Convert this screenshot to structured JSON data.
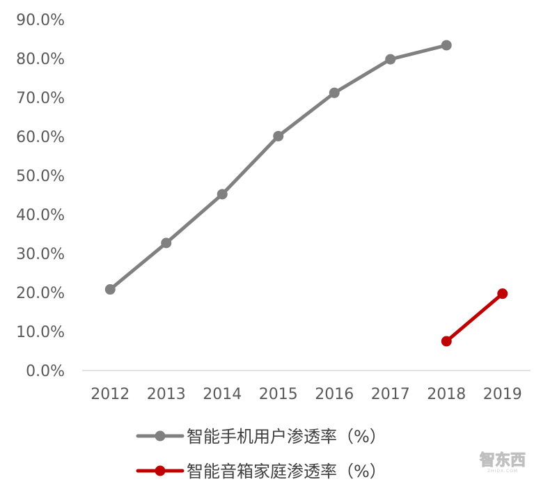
{
  "chart_data": {
    "type": "line",
    "title": "",
    "xlabel": "",
    "ylabel": "",
    "categories": [
      "2012",
      "2013",
      "2014",
      "2015",
      "2016",
      "2017",
      "2018",
      "2019"
    ],
    "y_tick_labels": [
      "0.0%",
      "10.0%",
      "20.0%",
      "30.0%",
      "40.0%",
      "50.0%",
      "60.0%",
      "70.0%",
      "80.0%",
      "90.0%"
    ],
    "ylim": [
      0,
      90
    ],
    "grid": false,
    "legend_position": "bottom",
    "series": [
      {
        "name": "智能手机用户渗透率（%）",
        "color": "#808080",
        "values": [
          20.8,
          32.7,
          45.2,
          60.1,
          71.2,
          79.8,
          83.4,
          null
        ]
      },
      {
        "name": "智能音箱家庭渗透率（%）",
        "color": "#c00000",
        "values": [
          null,
          null,
          null,
          null,
          null,
          null,
          7.5,
          19.7
        ]
      }
    ]
  },
  "watermark": {
    "text": "智东西",
    "sub": "ZHIDX.COM"
  }
}
